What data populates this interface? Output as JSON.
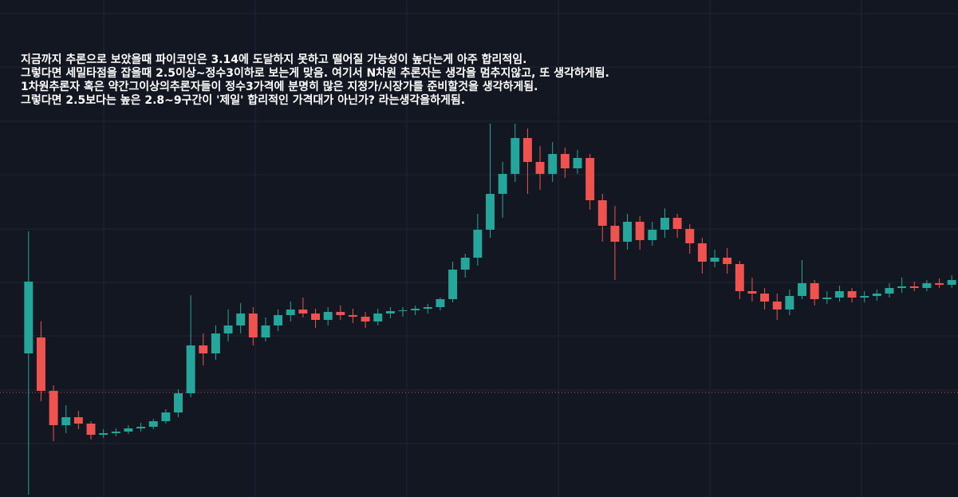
{
  "chart_data": {
    "type": "candlestick",
    "annotations": [
      "지금까지 추론으로 보았을때 파이코인은 3.14에 도달하지 못하고 떨어질 가능성이 높다는게 아주 합리적임.",
      "그렇다면 세밀타점을 잡을때 2.5이상~정수3이하로 보는게 맞음. 여기서  N차원 추론자는 생각을 멈추지않고, 또 생각하게됨.",
      "1차원추론자 혹은 약간그이상의추론자들이 정수3가격에 분명히 많은 지정가/시장가를 준비할것을 생각하게됨.",
      "그렇다면 2.5보다는 높은 2.8~9구간이 '제일' 합리적인 가격대가 아닌가? 라는생각을하게됨."
    ],
    "open": [
      180,
      200,
      133,
      90,
      100,
      92,
      78,
      80,
      82,
      86,
      88,
      95,
      106,
      130,
      190,
      180,
      205,
      215,
      230,
      200,
      215,
      228,
      235,
      230,
      222,
      232,
      228,
      226,
      220,
      230,
      233,
      234,
      236,
      238,
      248,
      285,
      300,
      335,
      380,
      405,
      450,
      420,
      405,
      430,
      412,
      425,
      372,
      340,
      320,
      345,
      322,
      335,
      350,
      336,
      318,
      295,
      300,
      292,
      258,
      255,
      245,
      235,
      252,
      268,
      248,
      250,
      258,
      250,
      252,
      255,
      262,
      264,
      262,
      268,
      266
    ],
    "high": [
      333,
      220,
      140,
      115,
      108,
      95,
      85,
      86,
      90,
      93,
      98,
      110,
      135,
      253,
      205,
      215,
      235,
      243,
      238,
      225,
      235,
      245,
      250,
      236,
      238,
      240,
      236,
      232,
      236,
      238,
      238,
      240,
      242,
      250,
      295,
      305,
      355,
      468,
      420,
      468,
      462,
      440,
      445,
      438,
      435,
      430,
      380,
      365,
      355,
      352,
      345,
      362,
      355,
      342,
      325,
      310,
      312,
      296,
      275,
      262,
      255,
      260,
      297,
      272,
      258,
      265,
      262,
      258,
      260,
      268,
      275,
      270,
      272,
      274,
      278
    ],
    "low": [
      3,
      120,
      70,
      80,
      85,
      72,
      74,
      76,
      79,
      82,
      85,
      92,
      100,
      125,
      165,
      172,
      195,
      205,
      190,
      195,
      208,
      220,
      225,
      212,
      215,
      222,
      218,
      212,
      215,
      224,
      226,
      228,
      230,
      234,
      244,
      275,
      290,
      325,
      350,
      395,
      380,
      385,
      395,
      400,
      405,
      360,
      320,
      272,
      310,
      310,
      315,
      325,
      325,
      305,
      280,
      288,
      280,
      248,
      245,
      235,
      222,
      228,
      248,
      240,
      242,
      245,
      244,
      244,
      246,
      250,
      256,
      258,
      258,
      262,
      262
    ],
    "close": [
      270,
      133,
      90,
      100,
      92,
      78,
      80,
      82,
      86,
      88,
      95,
      106,
      130,
      190,
      180,
      205,
      215,
      230,
      200,
      215,
      228,
      235,
      230,
      222,
      232,
      228,
      226,
      220,
      230,
      233,
      234,
      236,
      238,
      248,
      285,
      300,
      335,
      380,
      405,
      450,
      420,
      405,
      430,
      412,
      425,
      372,
      340,
      320,
      345,
      322,
      335,
      350,
      336,
      318,
      295,
      300,
      292,
      258,
      255,
      245,
      235,
      252,
      268,
      248,
      250,
      258,
      250,
      252,
      255,
      262,
      264,
      262,
      268,
      266,
      272
    ],
    "up_color": "#26a69a",
    "down_color": "#ef5350",
    "reference_line": 131,
    "reference_color": "#ef5350",
    "ylim": [
      0,
      623
    ],
    "yticks": [
      67,
      134,
      202,
      269,
      336,
      404,
      471,
      539,
      606
    ],
    "grid": true
  }
}
